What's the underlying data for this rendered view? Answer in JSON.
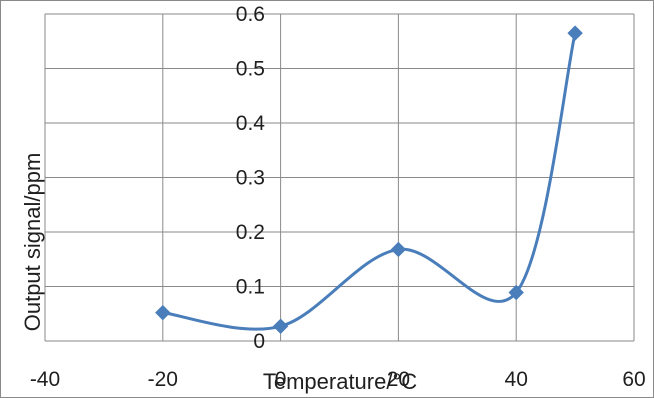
{
  "chart_data": {
    "type": "scatter",
    "xlabel": "Temperature/°C",
    "ylabel": "Output signal/ppm",
    "xlim": [
      -40,
      60
    ],
    "ylim": [
      0,
      0.6
    ],
    "x_ticks": [
      -40,
      -20,
      0,
      20,
      40,
      60
    ],
    "y_ticks": [
      0,
      0.1,
      0.2,
      0.3,
      0.4,
      0.5,
      0.6
    ],
    "grid": "horizontal and vertical",
    "legend": "none",
    "series_color": "#4a7ebb",
    "marker": "diamond",
    "line": "smoothed",
    "series": [
      {
        "x": [
          -20,
          0,
          20,
          40,
          50
        ],
        "y": [
          0.052,
          0.027,
          0.168,
          0.089,
          0.565
        ]
      }
    ]
  }
}
